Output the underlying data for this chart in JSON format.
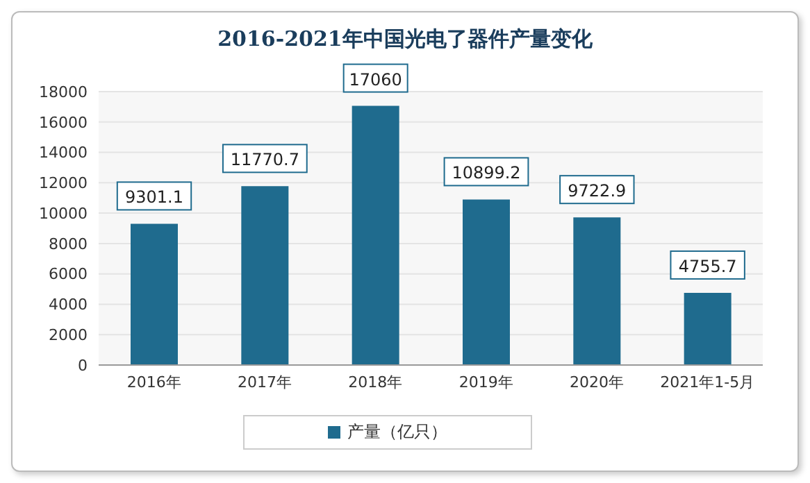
{
  "chart_data": {
    "type": "bar",
    "title": "2016-2021年中国光电了器件产量变化",
    "categories": [
      "2016年",
      "2017年",
      "2018年",
      "2019年",
      "2020年",
      "2021年1-5月"
    ],
    "series": [
      {
        "name": "产量（亿只）",
        "color": "#1f6b8e",
        "values": [
          9301.1,
          11770.7,
          17060,
          10899.2,
          9722.9,
          4755.7
        ]
      }
    ],
    "ylim": [
      0,
      18000
    ],
    "yticks": [
      0,
      2000,
      4000,
      6000,
      8000,
      10000,
      12000,
      14000,
      16000,
      18000
    ],
    "grid": "y",
    "legend": "bottom",
    "data_labels": true
  }
}
